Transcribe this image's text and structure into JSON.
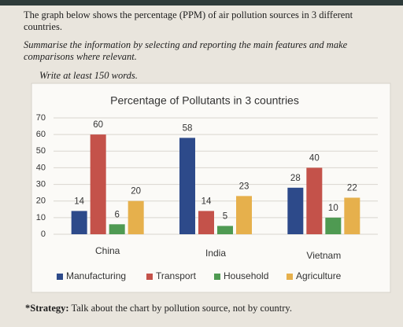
{
  "page": {
    "intro": "The graph below shows the percentage (PPM) of air pollution sources in 3 different countries.",
    "task": "Summarise the information by selecting and reporting the main features and make comparisons where relevant.",
    "words": "Write at least 150 words.",
    "strategy_label": "*Strategy:",
    "strategy_text": "Talk about the chart by pollution source, not by country."
  },
  "chart_data": {
    "type": "bar",
    "title": "Percentage of Pollutants in 3 countries",
    "categories": [
      "China",
      "India",
      "Vietnam"
    ],
    "series": [
      {
        "name": "Manufacturing",
        "color": "#2d4a8a",
        "values": [
          14,
          58,
          28
        ]
      },
      {
        "name": "Transport",
        "color": "#c4524a",
        "values": [
          60,
          14,
          40
        ]
      },
      {
        "name": "Household",
        "color": "#4f9a52",
        "values": [
          6,
          5,
          10
        ]
      },
      {
        "name": "Agriculture",
        "color": "#e6b04c",
        "values": [
          20,
          23,
          22
        ]
      }
    ],
    "ylim": [
      0,
      70
    ],
    "yticks": [
      0,
      10,
      20,
      30,
      40,
      50,
      60,
      70
    ],
    "grid": true,
    "legend": "bottom"
  }
}
